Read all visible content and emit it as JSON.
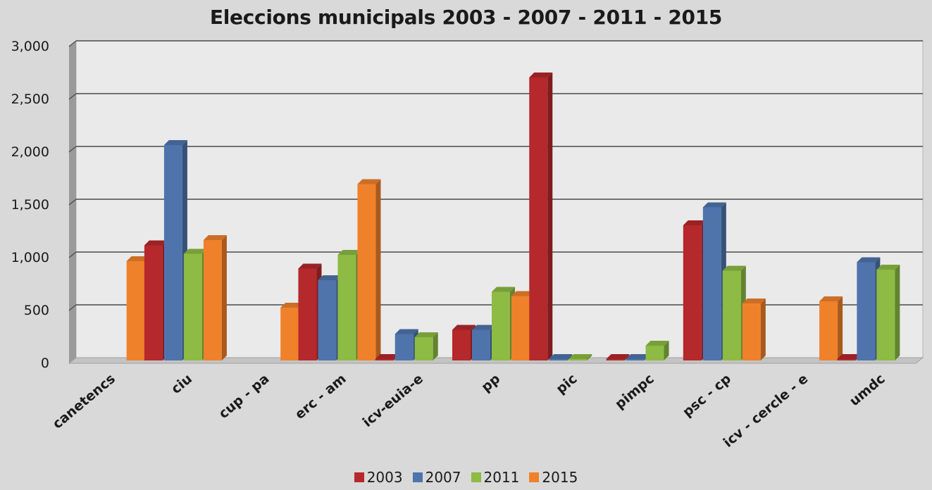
{
  "chart_data": {
    "type": "bar",
    "title": "Eleccions municipals 2003 - 2007 - 2011 - 2015",
    "xlabel": "",
    "ylabel": "",
    "ylim": [
      0,
      3000
    ],
    "ytick_labels": [
      "0",
      "500",
      "1,000",
      "1,500",
      "2,000",
      "2,500",
      "3,000"
    ],
    "ytick_values": [
      0,
      500,
      1000,
      1500,
      2000,
      2500,
      3000
    ],
    "categories": [
      "canetencs",
      "ciu",
      "cup - pa",
      "erc - am",
      "icv-euia-e",
      "pp",
      "pic",
      "pimpc",
      "psc - cp",
      "icv - cercle - e",
      "umdc"
    ],
    "series": [
      {
        "name": "2003",
        "color": "#b5282c",
        "values": [
          0,
          1090,
          0,
          870,
          10,
          290,
          2680,
          10,
          1280,
          0,
          10
        ]
      },
      {
        "name": "2007",
        "color": "#4f74ac",
        "values": [
          0,
          2040,
          0,
          760,
          250,
          290,
          10,
          10,
          1450,
          0,
          930
        ]
      },
      {
        "name": "2011",
        "color": "#8dbb44",
        "values": [
          0,
          1010,
          0,
          1000,
          220,
          650,
          10,
          140,
          850,
          0,
          860
        ]
      },
      {
        "name": "2015",
        "color": "#f0812b",
        "values": [
          940,
          1140,
          500,
          1670,
          0,
          610,
          0,
          0,
          540,
          560,
          0
        ]
      }
    ],
    "grid": true,
    "legend_position": "bottom"
  }
}
